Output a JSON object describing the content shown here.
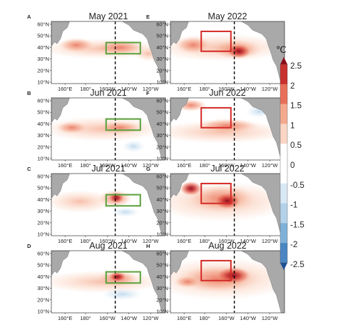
{
  "unit": "℃",
  "colorbar": {
    "ticks": [
      "2.5",
      "2",
      "1.5",
      "1",
      "0.5",
      "0",
      "-0.5",
      "-1",
      "-1.5",
      "-2",
      "-2.5"
    ],
    "colors": {
      "dark_red": "#8b0a1a",
      "red": "#c8302f",
      "orange_red": "#e8705a",
      "salmon": "#f4a98e",
      "peach": "#fbd6c4",
      "white": "#ffffff",
      "light_blue": "#d8e8f4",
      "sky_blue": "#b3d2ea",
      "mid_blue": "#7fb0d8",
      "blue": "#4a86c2",
      "dark_blue": "#1f4f94"
    }
  },
  "axes": {
    "lat_labels": [
      "60°N",
      "50°N",
      "40°N",
      "30°N",
      "20°N",
      "10°N"
    ],
    "lon_labels": [
      "160°E",
      "180°",
      "160°W",
      "140°W",
      "120°W"
    ]
  },
  "panels": [
    {
      "letter": "A",
      "title": "May 2021",
      "box_color": "#5aa03c",
      "box_label": "green"
    },
    {
      "letter": "B",
      "title": "Jun 2021",
      "box_color": "#5aa03c",
      "box_label": "green"
    },
    {
      "letter": "C",
      "title": "Jul 2021",
      "box_color": "#5aa03c",
      "box_label": "green"
    },
    {
      "letter": "D",
      "title": "Aug 2021",
      "box_color": "#5aa03c",
      "box_label": "green"
    },
    {
      "letter": "E",
      "title": "May 2022",
      "box_color": "#d42a26",
      "box_label": "red"
    },
    {
      "letter": "F",
      "title": "Jun 2022",
      "box_color": "#d42a26",
      "box_label": "red"
    },
    {
      "letter": "G",
      "title": "Jul 2022",
      "box_color": "#d42a26",
      "box_label": "red"
    },
    {
      "letter": "H",
      "title": "Aug 2022",
      "box_color": "#d42a26",
      "box_label": "red"
    }
  ],
  "map_colors": {
    "land": "#a9a9a9",
    "ocean": "#ffffff"
  }
}
